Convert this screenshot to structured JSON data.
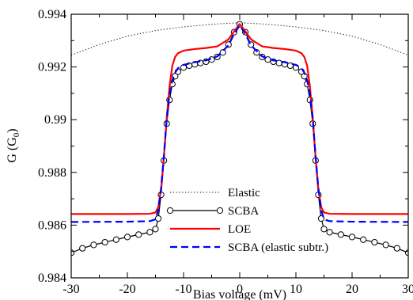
{
  "chart_data": {
    "type": "line",
    "xlabel": "Bias voltage  (mV)",
    "ylabel_main": "G  (G",
    "ylabel_sub": "0",
    "ylabel_tail": ")",
    "xlim": [
      -30,
      30
    ],
    "ylim": [
      0.984,
      0.994
    ],
    "grid": false,
    "legend_position": "bottom-center",
    "x_ticks": [
      {
        "value": -30,
        "label": "-30"
      },
      {
        "value": -20,
        "label": "-20"
      },
      {
        "value": -10,
        "label": "-10"
      },
      {
        "value": 0,
        "label": "0"
      },
      {
        "value": 10,
        "label": "10"
      },
      {
        "value": 20,
        "label": "20"
      },
      {
        "value": 30,
        "label": "30"
      }
    ],
    "y_ticks": [
      {
        "value": 0.984,
        "label": "0.984"
      },
      {
        "value": 0.986,
        "label": "0.986"
      },
      {
        "value": 0.988,
        "label": "0.988"
      },
      {
        "value": 0.99,
        "label": "0.99"
      },
      {
        "value": 0.992,
        "label": "0.992"
      },
      {
        "value": 0.994,
        "label": "0.994"
      }
    ],
    "series": [
      {
        "name": "Elastic",
        "color": "#000000",
        "style": "dotted",
        "marker": "none",
        "x": [
          -30,
          -25,
          -20,
          -15,
          -10,
          -5,
          0,
          5,
          10,
          15,
          20,
          25,
          30
        ],
        "y": [
          0.99245,
          0.99285,
          0.99317,
          0.99338,
          0.99352,
          0.99362,
          0.99368,
          0.99362,
          0.99352,
          0.99338,
          0.99317,
          0.99285,
          0.99245
        ]
      },
      {
        "name": "SCBA",
        "color": "#000000",
        "style": "solid",
        "marker": "circle",
        "x": [
          -30,
          -28,
          -26,
          -24,
          -22,
          -20,
          -18,
          -16,
          -15,
          -14.5,
          -14,
          -13.5,
          -13,
          -12.5,
          -12,
          -11.5,
          -11,
          -10,
          -9,
          -8,
          -7,
          -6,
          -5,
          -4,
          -3,
          -2,
          -1,
          0,
          1,
          2,
          3,
          4,
          5,
          6,
          7,
          8,
          9,
          10,
          11,
          11.5,
          12,
          12.5,
          13,
          13.5,
          14,
          14.5,
          15,
          16,
          18,
          20,
          22,
          24,
          26,
          28,
          30
        ],
        "y": [
          0.98495,
          0.98512,
          0.98525,
          0.98535,
          0.98545,
          0.98555,
          0.98564,
          0.98573,
          0.98585,
          0.98625,
          0.98715,
          0.98845,
          0.98985,
          0.99075,
          0.99135,
          0.99165,
          0.99182,
          0.99198,
          0.99205,
          0.9921,
          0.99215,
          0.9922,
          0.99228,
          0.99238,
          0.99255,
          0.99285,
          0.99332,
          0.99362,
          0.99332,
          0.99285,
          0.99255,
          0.99238,
          0.99228,
          0.9922,
          0.99215,
          0.9921,
          0.99205,
          0.99198,
          0.99182,
          0.99165,
          0.99135,
          0.99075,
          0.98985,
          0.98845,
          0.98715,
          0.98625,
          0.98585,
          0.98573,
          0.98564,
          0.98555,
          0.98545,
          0.98535,
          0.98525,
          0.98512,
          0.98495
        ]
      },
      {
        "name": "LOE",
        "color": "#ff0000",
        "style": "solid",
        "marker": "none",
        "x": [
          -30,
          -20,
          -16,
          -15,
          -14.5,
          -14,
          -13.5,
          -13,
          -12.5,
          -12,
          -11.5,
          -11,
          -10,
          -8,
          -6,
          -4,
          -2,
          -1,
          0,
          1,
          2,
          4,
          6,
          8,
          10,
          11,
          11.5,
          12,
          12.5,
          13,
          13.5,
          14,
          14.5,
          15,
          16,
          20,
          30
        ],
        "y": [
          0.98642,
          0.98642,
          0.98643,
          0.98648,
          0.98668,
          0.98738,
          0.98858,
          0.99005,
          0.99125,
          0.99205,
          0.99238,
          0.99252,
          0.99262,
          0.99268,
          0.99272,
          0.99278,
          0.99305,
          0.99335,
          0.99363,
          0.99335,
          0.99305,
          0.99278,
          0.99272,
          0.99268,
          0.99262,
          0.99252,
          0.99238,
          0.99205,
          0.99125,
          0.99005,
          0.98858,
          0.98738,
          0.98668,
          0.98648,
          0.98643,
          0.98642,
          0.98642
        ]
      },
      {
        "name": "SCBA (elastic subtr.)",
        "color": "#0000ff",
        "style": "dashed",
        "marker": "none",
        "x": [
          -30,
          -20,
          -16,
          -15,
          -14.5,
          -14,
          -13.5,
          -13,
          -12.5,
          -12,
          -11.5,
          -11,
          -10,
          -8,
          -6,
          -4,
          -2,
          -1,
          0,
          1,
          2,
          4,
          6,
          8,
          10,
          11,
          11.5,
          12,
          12.5,
          13,
          13.5,
          14,
          14.5,
          15,
          16,
          20,
          30
        ],
        "y": [
          0.98612,
          0.98613,
          0.98615,
          0.98622,
          0.98658,
          0.98738,
          0.98862,
          0.99005,
          0.99098,
          0.9915,
          0.99178,
          0.99195,
          0.99208,
          0.99218,
          0.99225,
          0.9924,
          0.99282,
          0.99325,
          0.99358,
          0.99325,
          0.99282,
          0.9924,
          0.99225,
          0.99218,
          0.99208,
          0.99195,
          0.99178,
          0.9915,
          0.99098,
          0.99005,
          0.98862,
          0.98738,
          0.98658,
          0.98622,
          0.98615,
          0.98613,
          0.98612
        ]
      }
    ]
  }
}
